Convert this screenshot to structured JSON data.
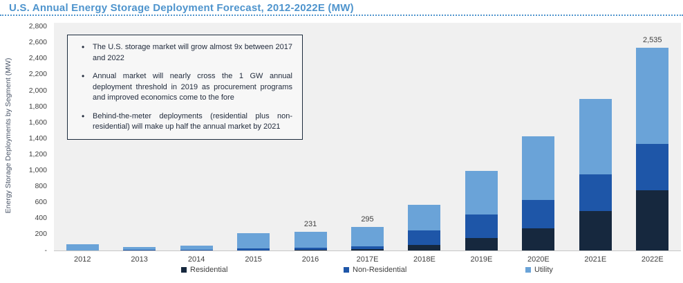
{
  "title": "U.S. Annual Energy Storage Deployment Forecast, 2012-2022E (MW)",
  "y_axis": {
    "label": "Energy Storage Deployments by Segment (MW)",
    "ticks": [
      {
        "label": "2,800",
        "value": 2800
      },
      {
        "label": "2,600",
        "value": 2600
      },
      {
        "label": "2,400",
        "value": 2400
      },
      {
        "label": "2,200",
        "value": 2200
      },
      {
        "label": "2,000",
        "value": 2000
      },
      {
        "label": "1,800",
        "value": 1800
      },
      {
        "label": "1,600",
        "value": 1600
      },
      {
        "label": "1,400",
        "value": 1400
      },
      {
        "label": "1,200",
        "value": 1200
      },
      {
        "label": "1,000",
        "value": 1000
      },
      {
        "label": "800",
        "value": 800
      },
      {
        "label": "600",
        "value": 600
      },
      {
        "label": "400",
        "value": 400
      },
      {
        "label": "200",
        "value": 200
      },
      {
        "label": "-",
        "value": 0
      }
    ]
  },
  "callout_box": {
    "bullets": [
      "The U.S. storage market will grow almost 9x between 2017 and 2022",
      "Annual market will nearly cross the 1 GW annual deployment threshold in 2019 as procurement programs and improved economics come to the fore",
      "Behind-the-meter deployments (residential plus non-residential) will make up half the annual market by 2021"
    ]
  },
  "chart_data": {
    "type": "bar",
    "stacked": true,
    "title": "U.S. Annual Energy Storage Deployment Forecast, 2012-2022E (MW)",
    "xlabel": "",
    "ylabel": "Energy Storage Deployments by Segment (MW)",
    "ylim": [
      0,
      2800
    ],
    "grid": false,
    "legend_position": "bottom",
    "categories": [
      "2012",
      "2013",
      "2014",
      "2015",
      "2016",
      "2017E",
      "2018E",
      "2019E",
      "2020E",
      "2021E",
      "2022E"
    ],
    "series": [
      {
        "name": "Residential",
        "color": "#16283E",
        "values": [
          0,
          0,
          0,
          4,
          6,
          15,
          70,
          160,
          280,
          490,
          755
        ]
      },
      {
        "name": "Non-Residential",
        "color": "#1E56A8",
        "values": [
          4,
          5,
          5,
          24,
          30,
          40,
          185,
          290,
          355,
          460,
          580
        ]
      },
      {
        "name": "Utility",
        "color": "#6AA3D8",
        "values": [
          76,
          40,
          55,
          192,
          195,
          240,
          320,
          550,
          795,
          950,
          1200
        ]
      }
    ],
    "totals": [
      80,
      45,
      60,
      220,
      231,
      295,
      575,
      1000,
      1430,
      1900,
      2535
    ],
    "bar_labels": [
      "",
      "",
      "",
      "",
      "231",
      "295",
      "",
      "",
      "",
      "",
      "2,535"
    ]
  },
  "colors": {
    "title": "#4E94CD",
    "plot_bg": "#F0F0F0",
    "axis_text": "#404040",
    "axis_line": "#C6C6C6",
    "box_border": "#1B2A3C"
  }
}
